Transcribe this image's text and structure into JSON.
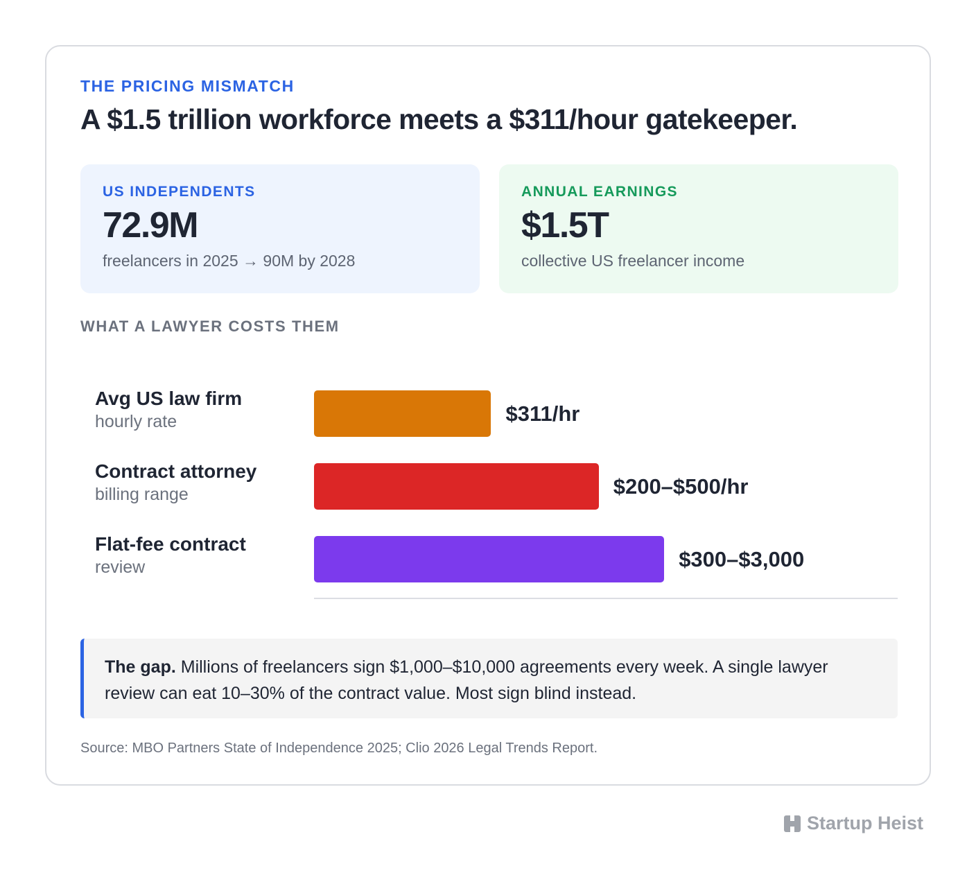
{
  "eyebrow": "THE PRICING MISMATCH",
  "headline": "A $1.5 trillion workforce meets a $311/hour gatekeeper.",
  "stats": [
    {
      "label": "US INDEPENDENTS",
      "value": "72.9M",
      "sub": "freelancers in 2025 → 90M by 2028",
      "color": "#2b63e3",
      "bg": "#eef4fe"
    },
    {
      "label": "ANNUAL EARNINGS",
      "value": "$1.5T",
      "sub": "collective US freelancer income",
      "color": "#169a5b",
      "bg": "#edfaf1"
    }
  ],
  "section_label": "WHAT A LAWYER COSTS THEM",
  "chart_data": {
    "type": "bar",
    "orientation": "horizontal",
    "categories": [
      {
        "title": "Avg US law firm",
        "sub": "hourly rate"
      },
      {
        "title": "Contract attorney",
        "sub": "billing range"
      },
      {
        "title": "Flat-fee contract",
        "sub": "review"
      }
    ],
    "values": [
      311,
      500,
      615
    ],
    "value_labels": [
      "$311/hr",
      "$200–$500/hr",
      "$300–$3,000"
    ],
    "colors": [
      "#d97706",
      "#dc2626",
      "#7c3aed"
    ],
    "xlim": [
      0,
      1025
    ],
    "grid": false,
    "legend": "none"
  },
  "callout": {
    "lead": "The gap.",
    "text": " Millions of freelancers sign $1,000–$10,000 agreements every week. A single lawyer review can eat 10–30% of the contract value. Most sign blind instead."
  },
  "source": "Source: MBO Partners State of Independence 2025; Clio 2026 Legal Trends Report.",
  "brand": {
    "name": "Startup Heist",
    "icon": "building-logo-icon"
  }
}
